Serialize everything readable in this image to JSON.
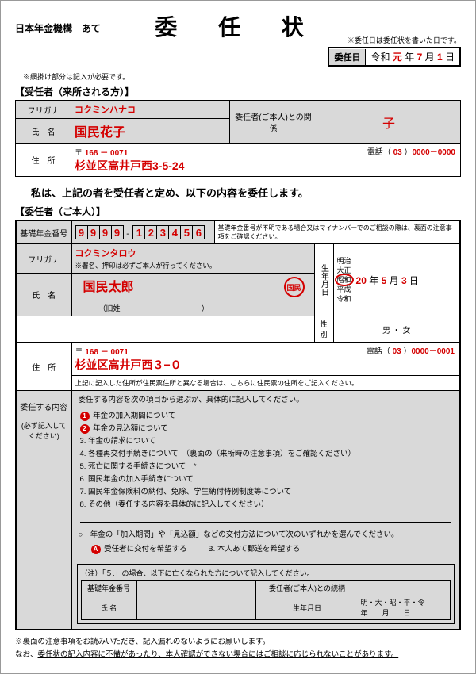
{
  "title": "委 任 状",
  "addressee": "日本年金機構　あて",
  "date_note": "※委任日は委任状を書いた日です。",
  "date_label": "委任日",
  "date_era": "令和",
  "date_gannen": "元",
  "date_year_suffix": "年",
  "date_month": "7",
  "date_month_suffix": "月",
  "date_day": "1",
  "date_day_suffix": "日",
  "hatched_note": "※網掛け部分は記入が必要です。",
  "sect1": "【受任者（来所される方）】",
  "furigana_lbl": "フリガナ",
  "name_lbl": "氏　名",
  "addr_lbl": "住　所",
  "rel_lbl": "委任者(ご本人)との関係",
  "phone_lbl": "電話",
  "junin_furigana": "コクミンハナコ",
  "junin_name": "国民花子",
  "junin_relation": "子",
  "junin_zip_prefix": "〒",
  "junin_zip": "168 － 0071",
  "junin_addr": "杉並区高井戸西3-5-24",
  "junin_phone_area": "03",
  "junin_phone": "0000－0000",
  "statement": "私は、上記の者を受任者と定め、以下の内容を委任します。",
  "sect2": "【委任者（ご本人）】",
  "basic_num_lbl": "基礎年金番号",
  "basic_num_digits": [
    "9",
    "9",
    "9",
    "9",
    "-",
    "1",
    "2",
    "3",
    "4",
    "5",
    "6"
  ],
  "basic_num_note": "基礎年金番号が不明である場合又はマイナンバーでのご相談の際は、裏面の注意事項をご確認ください。",
  "inin_furigana": "コクミンタロウ",
  "sign_note": "※署名、押印は必ずご本人が行ってください。",
  "inin_name": "国民太郎",
  "seal_text": "国民",
  "old_name_lbl": "（旧姓",
  "old_name_paren": "）",
  "birth_lbl": "生年月日",
  "eras": [
    "明治",
    "大正",
    "昭和",
    "平成",
    "令和"
  ],
  "selected_era_idx": 2,
  "birth_y": "20",
  "birth_m": "5",
  "birth_d": "3",
  "y_suf": "年",
  "m_suf": "月",
  "d_suf": "日",
  "sex_lbl": "性別",
  "sex_opts": "男 ・ 女",
  "inin_zip": "168 － 0071",
  "inin_addr": "杉並区高井戸西３−０",
  "inin_addr_note": "上記に記入した住所が住民票住所と異なる場合は、こちらに住民票の住所をご記入ください。",
  "inin_phone_area": "03",
  "inin_phone": "0000－0001",
  "content_lbl": "委任する内容",
  "content_sublbl": "(必ず記入してください)",
  "content_intro": "委任する内容を次の項目から選ぶか、具体的に記入してください。",
  "items": [
    "年金の加入期間について",
    "年金の見込額について",
    "年金の請求について",
    "各種再交付手続きについて　（裏面の（来所時の注意事項）をご確認ください）",
    "死亡に関する手続きについて　*",
    "国民年金の加入手続きについて",
    "国民年金保険料の納付、免除、学生納付特例制度等について",
    "その他（委任する内容を具体的に記入してください）"
  ],
  "marked_items": [
    0,
    1
  ],
  "delivery_q": "○　年金の「加入期間」や「見込額」などの交付方法について次のいずれかを選んでください。",
  "delivery_a": "受任者に交付を希望する",
  "delivery_b": "B. 本人あて郵送を希望する",
  "note5": "（注）「５.」の場合、以下に亡くなられた方について記入してください。",
  "mini_col1": "基礎年金番号",
  "mini_col2": "委任者(ご本人)との続柄",
  "mini_name": "氏 名",
  "mini_birth": "生年月日",
  "mini_era_opts": "明・大・昭・平・令　　　年　　月　　日",
  "foot1": "※裏面の注意事項をお読みいただき、記入漏れのないようにお願いします。",
  "foot2": "なお、委任状の記入内容に不備があったり、本人確認ができない場合にはご相談に応じられないことがあります。"
}
